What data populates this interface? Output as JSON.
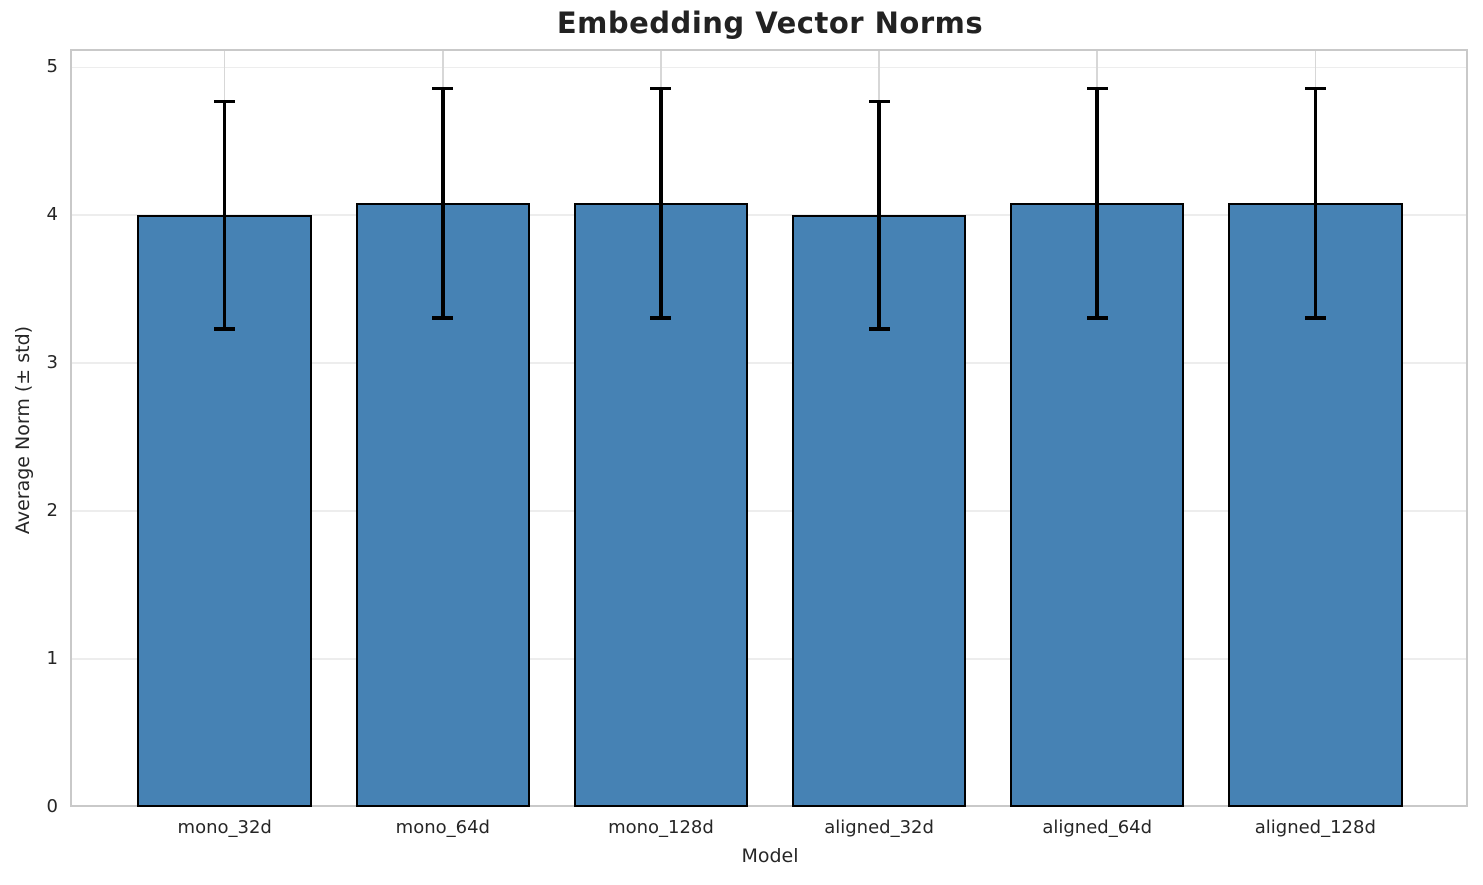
{
  "chart_data": {
    "type": "bar",
    "title": "Embedding Vector Norms",
    "xlabel": "Model",
    "ylabel": "Average Norm (± std)",
    "categories": [
      "mono_32d",
      "mono_64d",
      "mono_128d",
      "aligned_32d",
      "aligned_64d",
      "aligned_128d"
    ],
    "values": [
      4.0,
      4.08,
      4.08,
      4.0,
      4.08,
      4.08
    ],
    "errors": [
      0.77,
      0.775,
      0.775,
      0.77,
      0.775,
      0.775
    ],
    "series": [
      {
        "name": "Average Norm",
        "values": [
          4.0,
          4.08,
          4.08,
          4.0,
          4.08,
          4.08
        ]
      },
      {
        "name": "std",
        "values": [
          0.77,
          0.775,
          0.775,
          0.77,
          0.775,
          0.775
        ]
      }
    ],
    "yticks": [
      0,
      1,
      2,
      3,
      4,
      5
    ],
    "ylim": [
      0,
      5.11
    ],
    "xlim": [
      -0.7,
      5.7
    ],
    "bar_width": 0.8,
    "grid": true,
    "legend": false,
    "colors": {
      "bar_fill": "#4682B4",
      "bar_edge": "#000000",
      "error_bar": "#000000"
    }
  }
}
